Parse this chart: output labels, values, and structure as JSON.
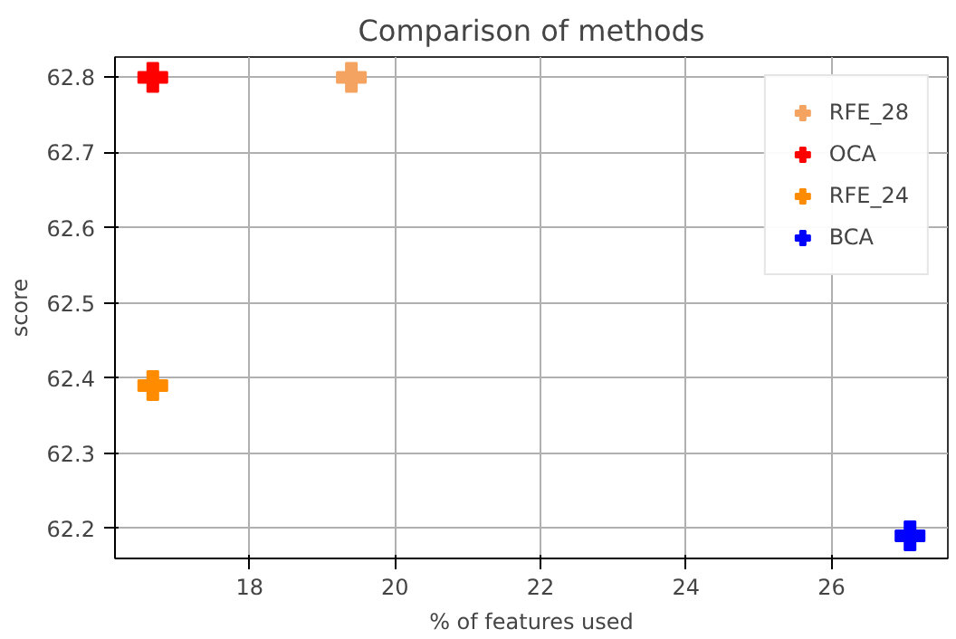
{
  "chart_data": {
    "type": "scatter",
    "title": "Comparison of methods",
    "xlabel": "% of features used",
    "ylabel": "score",
    "xlim": [
      16.15,
      27.6
    ],
    "ylim": [
      62.16,
      62.827
    ],
    "xticks": [
      18,
      20,
      22,
      24,
      26
    ],
    "yticks": [
      62.2,
      62.3,
      62.4,
      62.5,
      62.6,
      62.7,
      62.8
    ],
    "grid": true,
    "legend": "top right",
    "marker": "cross",
    "series": [
      {
        "name": "RFE_28",
        "color": "#f4a460",
        "x": [
          19.4
        ],
        "values": [
          62.8
        ]
      },
      {
        "name": "OCA",
        "color": "#ff0000",
        "x": [
          16.67
        ],
        "values": [
          62.8
        ]
      },
      {
        "name": "RFE_24",
        "color": "#ff8c00",
        "x": [
          16.67
        ],
        "values": [
          62.39
        ]
      },
      {
        "name": "BCA",
        "color": "#0000ff",
        "x": [
          27.08
        ],
        "values": [
          62.19
        ]
      }
    ]
  }
}
